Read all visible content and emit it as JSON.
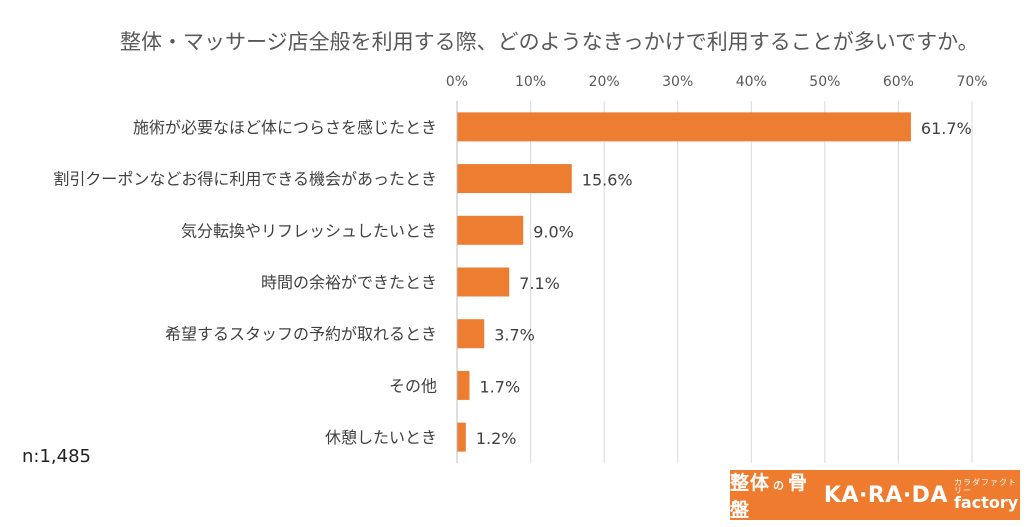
{
  "title": "整体・マッサージ店全般を利用する際、どのようなきっかけで利用することが多いですか。",
  "sample_size": "n:1,485",
  "logo": {
    "left_text": "整体",
    "mark": "の",
    "right_text": "骨盤",
    "brand": "KA·RA·DA",
    "kana": "カラダファクトリー",
    "factory": "factory",
    "bg_color": "#EF7B2F"
  },
  "chart_data": {
    "type": "bar",
    "orientation": "horizontal",
    "title": "整体・マッサージ店全般を利用する際、どのようなきっかけで利用することが多いですか。",
    "categories": [
      "施術が必要なほど体につらさを感じたとき",
      "割引クーポンなどお得に利用できる機会があったとき",
      "気分転換やリフレッシュしたいとき",
      "時間の余裕ができたとき",
      "希望するスタッフの予約が取れるとき",
      "その他",
      "休憩したいとき"
    ],
    "values": [
      61.7,
      15.6,
      9.0,
      7.1,
      3.7,
      1.7,
      1.2
    ],
    "data_labels": [
      "61.7%",
      "15.6%",
      "9.0%",
      "7.1%",
      "3.7%",
      "1.7%",
      "1.2%"
    ],
    "xlim": [
      0,
      70
    ],
    "x_ticks": [
      0,
      10,
      20,
      30,
      40,
      50,
      60,
      70
    ],
    "x_tick_labels": [
      "0%",
      "10%",
      "20%",
      "30%",
      "40%",
      "50%",
      "60%",
      "70%"
    ],
    "axis_position": "top",
    "grid": true,
    "bar_color": "#ED7D31",
    "legend": "none"
  }
}
